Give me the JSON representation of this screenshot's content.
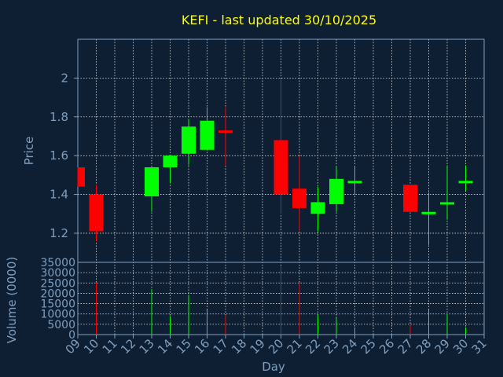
{
  "colors": {
    "background": "#0f1f33",
    "text": "#7f9fbf",
    "title": "#ffff00",
    "grid": "#dddddd",
    "up": "#00ff00",
    "down": "#ff0000"
  },
  "chart_data": {
    "type": "candlestick",
    "title": "KEFI - last updated 30/10/2025",
    "xlabel": "Day",
    "ylabel": "Price",
    "volume_label": "Volume (0000)",
    "grid": true,
    "price_ylim": [
      1.05,
      2.2
    ],
    "price_ticks": [
      "1.2",
      "1.4",
      "1.6",
      "1.8",
      "2"
    ],
    "volume_ylim": [
      0,
      35000
    ],
    "volume_ticks": [
      "0",
      "5000",
      "10000",
      "15000",
      "20000",
      "25000",
      "30000",
      "35000"
    ],
    "x_ticks": [
      "09",
      "10",
      "11",
      "12",
      "13",
      "14",
      "15",
      "16",
      "17",
      "18",
      "19",
      "20",
      "21",
      "22",
      "23",
      "24",
      "25",
      "26",
      "27",
      "28",
      "29",
      "30",
      "31"
    ],
    "candles": [
      {
        "day": "09",
        "open": 1.54,
        "high": 1.54,
        "low": 1.44,
        "close": 1.44,
        "volume": 0
      },
      {
        "day": "10",
        "open": 1.4,
        "high": 1.45,
        "low": 1.16,
        "close": 1.21,
        "volume": 25000
      },
      {
        "day": "13",
        "open": 1.39,
        "high": 1.54,
        "low": 1.31,
        "close": 1.54,
        "volume": 22000
      },
      {
        "day": "14",
        "open": 1.54,
        "high": 1.6,
        "low": 1.46,
        "close": 1.6,
        "volume": 9000
      },
      {
        "day": "15",
        "open": 1.61,
        "high": 1.79,
        "low": 1.55,
        "close": 1.75,
        "volume": 19000
      },
      {
        "day": "16",
        "open": 1.63,
        "high": 1.85,
        "low": 1.63,
        "close": 1.78,
        "volume": 12000
      },
      {
        "day": "17",
        "open": 1.73,
        "high": 1.85,
        "low": 1.55,
        "close": 1.72,
        "volume": 9500
      },
      {
        "day": "20",
        "open": 1.68,
        "high": 1.99,
        "low": 1.3,
        "close": 1.4,
        "volume": 33000
      },
      {
        "day": "21",
        "open": 1.43,
        "high": 1.6,
        "low": 1.21,
        "close": 1.33,
        "volume": 25000
      },
      {
        "day": "22",
        "open": 1.3,
        "high": 1.44,
        "low": 1.21,
        "close": 1.36,
        "volume": 9500
      },
      {
        "day": "23",
        "open": 1.35,
        "high": 1.54,
        "low": 1.31,
        "close": 1.48,
        "volume": 8000
      },
      {
        "day": "24",
        "open": 1.46,
        "high": 1.54,
        "low": 1.4,
        "close": 1.47,
        "volume": 3500
      },
      {
        "day": "27",
        "open": 1.45,
        "high": 1.45,
        "low": 1.31,
        "close": 1.31,
        "volume": 4500
      },
      {
        "day": "28",
        "open": 1.31,
        "high": 1.41,
        "low": 1.14,
        "close": 1.31,
        "volume": 12000
      },
      {
        "day": "29",
        "open": 1.35,
        "high": 1.55,
        "low": 1.27,
        "close": 1.36,
        "volume": 10000
      },
      {
        "day": "30",
        "open": 1.46,
        "high": 1.55,
        "low": 1.42,
        "close": 1.47,
        "volume": 3500
      }
    ]
  }
}
